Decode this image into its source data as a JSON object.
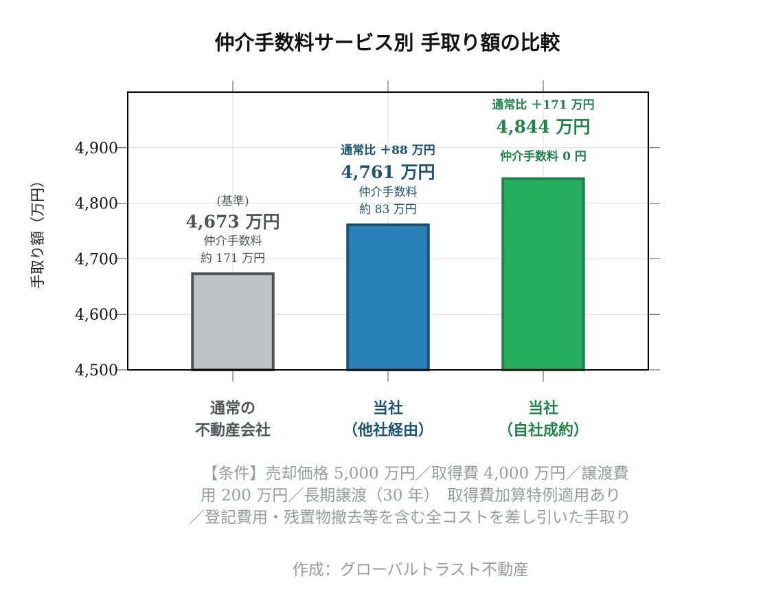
{
  "chart_data": {
    "type": "bar",
    "title": "仲介手数料サービス別 手取り額の比較",
    "ylabel": "手取り額（万円）",
    "xlabel": "",
    "ylim": [
      4500,
      5000
    ],
    "yticks": [
      4500,
      4600,
      4700,
      4800,
      4900
    ],
    "ytick_labels": [
      "4,500",
      "4,600",
      "4,700",
      "4,800",
      "4,900"
    ],
    "grid": true,
    "categories": [
      [
        "通常の",
        "不動産会社"
      ],
      [
        "当社",
        "（他社経由）"
      ],
      [
        "当社",
        "（自社成約）"
      ]
    ],
    "values": [
      4673,
      4761,
      4844
    ],
    "colors": [
      "#bdc3c7",
      "#2a80b9",
      "#27ae60"
    ],
    "edge_colors": [
      "#4d5656",
      "#1a5276",
      "#1e8449"
    ],
    "label_colors": [
      "#4d5656",
      "#1a5276",
      "#1e8449"
    ],
    "annotations": [
      {
        "top": "(基準)",
        "value": "4,673 万円",
        "fee": [
          "仲介手数料",
          "約 171 万円"
        ]
      },
      {
        "top": "通常比 ＋88 万円",
        "value": "4,761 万円",
        "fee": [
          "仲介手数料",
          "約 83 万円"
        ]
      },
      {
        "top": "通常比 ＋171 万円",
        "value": "4,844 万円",
        "fee": [
          "仲介手数料 0 円"
        ]
      }
    ]
  },
  "notes": [
    "【条件】売却価格 5,000 万円／取得費 4,000 万円／譲渡費",
    "用 200 万円／長期譲渡（30 年）　取得費加算特例適用あり",
    "／登記費用・残置物撤去等を含む全コストを差し引いた手取り"
  ],
  "credit": "作成：グローバルトラスト不動産"
}
